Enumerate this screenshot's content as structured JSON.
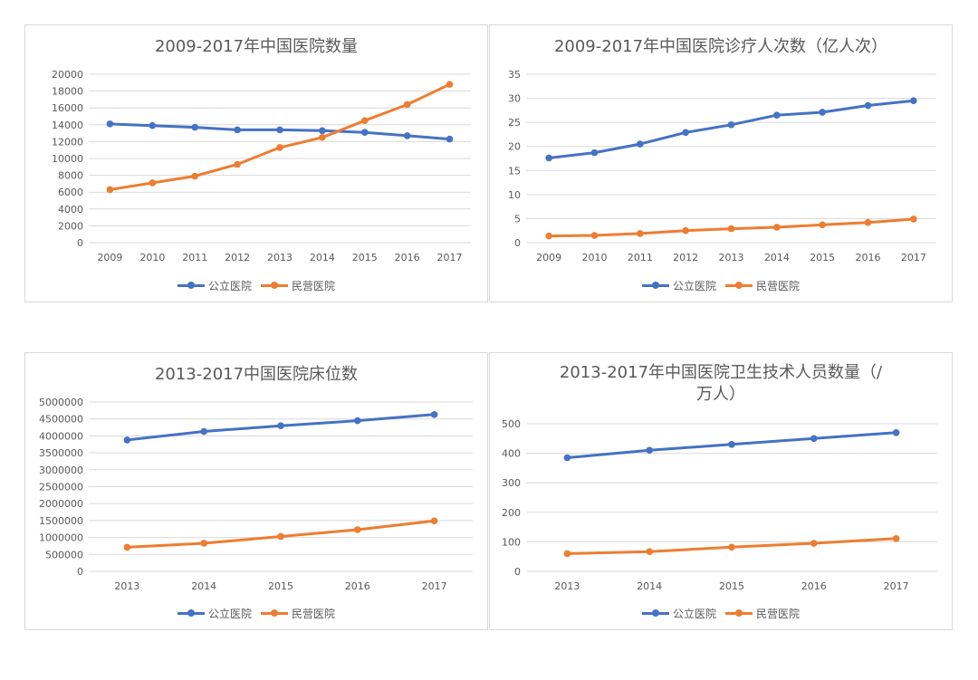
{
  "legend": {
    "public_label": "公立医院",
    "private_label": "民营医院"
  },
  "colors": {
    "public": "#4472c4",
    "private": "#ed7d31",
    "grid": "#d9d9d9",
    "text": "#595959"
  },
  "chart_data": [
    {
      "type": "line",
      "title": "2009-2017年中国医院数量",
      "categories": [
        "2009",
        "2010",
        "2011",
        "2012",
        "2013",
        "2014",
        "2015",
        "2016",
        "2017"
      ],
      "ylim": [
        0,
        20000
      ],
      "ytick_step": 2000,
      "yticks": [
        "0",
        "2000",
        "4000",
        "6000",
        "8000",
        "10000",
        "12000",
        "14000",
        "16000",
        "18000",
        "20000"
      ],
      "series": [
        {
          "name": "公立医院",
          "values": [
            14100,
            13900,
            13700,
            13400,
            13400,
            13300,
            13100,
            12700,
            12300
          ]
        },
        {
          "name": "民营医院",
          "values": [
            6300,
            7100,
            7900,
            9300,
            11300,
            12500,
            14500,
            16400,
            18800
          ]
        }
      ]
    },
    {
      "type": "line",
      "title": "2009-2017年中国医院诊疗人次数（亿人次）",
      "categories": [
        "2009",
        "2010",
        "2011",
        "2012",
        "2013",
        "2014",
        "2015",
        "2016",
        "2017"
      ],
      "ylim": [
        0,
        35
      ],
      "ytick_step": 5,
      "yticks": [
        "0",
        "5",
        "10",
        "15",
        "20",
        "25",
        "30",
        "35"
      ],
      "series": [
        {
          "name": "公立医院",
          "values": [
            17.6,
            18.7,
            20.5,
            22.9,
            24.5,
            26.5,
            27.1,
            28.5,
            29.5
          ]
        },
        {
          "name": "民营医院",
          "values": [
            1.4,
            1.5,
            1.9,
            2.5,
            2.9,
            3.2,
            3.7,
            4.2,
            4.9
          ]
        }
      ]
    },
    {
      "type": "line",
      "title": "2013-2017中国医院床位数",
      "categories": [
        "2013",
        "2014",
        "2015",
        "2016",
        "2017"
      ],
      "ylim": [
        0,
        5000000
      ],
      "ytick_step": 500000,
      "yticks": [
        "0",
        "500000",
        "1000000",
        "1500000",
        "2000000",
        "2500000",
        "3000000",
        "3500000",
        "4000000",
        "4500000",
        "5000000"
      ],
      "series": [
        {
          "name": "公立医院",
          "values": [
            3880000,
            4130000,
            4300000,
            4450000,
            4630000
          ]
        },
        {
          "name": "民营医院",
          "values": [
            710000,
            830000,
            1030000,
            1230000,
            1490000
          ]
        }
      ]
    },
    {
      "type": "line",
      "title": "2013-2017年中国医院卫生技术人员数量（/万人）",
      "title_lines": [
        "2013-2017年中国医院卫生技术人员数量（/",
        "万人）"
      ],
      "categories": [
        "2013",
        "2014",
        "2015",
        "2016",
        "2017"
      ],
      "ylim": [
        0,
        500
      ],
      "ytick_step": 100,
      "yticks": [
        "0",
        "100",
        "200",
        "300",
        "400",
        "500"
      ],
      "series": [
        {
          "name": "公立医院",
          "values": [
            385,
            410,
            430,
            450,
            470
          ]
        },
        {
          "name": "民营医院",
          "values": [
            60,
            67,
            82,
            95,
            111
          ]
        }
      ]
    }
  ]
}
